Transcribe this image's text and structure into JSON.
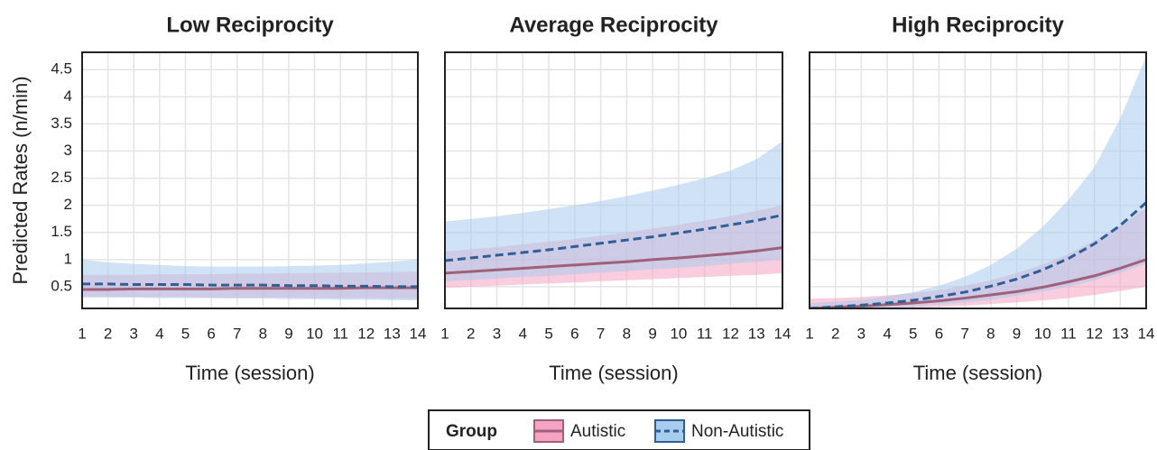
{
  "chart_data": [
    {
      "type": "line",
      "title": "Low Reciprocity",
      "ylabel": "Predicted Rates (n/min)",
      "xlabel": "Time (session)",
      "x": [
        1,
        2,
        3,
        4,
        5,
        6,
        7,
        8,
        9,
        10,
        11,
        12,
        13,
        14
      ],
      "xlim": [
        1,
        14
      ],
      "xticks": [
        1,
        2,
        3,
        4,
        5,
        6,
        7,
        8,
        9,
        10,
        11,
        12,
        13,
        14
      ],
      "ylim": [
        0.1,
        4.82
      ],
      "yticks": [
        0.5,
        1.0,
        1.5,
        2.0,
        2.5,
        3.0,
        3.5,
        4.0,
        4.5
      ],
      "grid": true,
      "legend": {
        "title": "Group",
        "position": "bottom"
      },
      "series": [
        {
          "name": "Autistic",
          "color": "#a0607a",
          "fill": "#f4a3c3",
          "linestyle": "solid",
          "values": [
            0.45,
            0.45,
            0.46,
            0.46,
            0.46,
            0.46,
            0.47,
            0.47,
            0.47,
            0.47,
            0.47,
            0.48,
            0.48,
            0.48
          ],
          "lower": [
            0.32,
            0.32,
            0.31,
            0.31,
            0.31,
            0.3,
            0.3,
            0.3,
            0.3,
            0.29,
            0.29,
            0.29,
            0.28,
            0.28
          ],
          "upper": [
            0.72,
            0.72,
            0.72,
            0.73,
            0.73,
            0.73,
            0.74,
            0.74,
            0.75,
            0.75,
            0.76,
            0.76,
            0.77,
            0.78
          ]
        },
        {
          "name": "Non-Autistic",
          "color": "#2e5f95",
          "fill": "#a9cbec",
          "linestyle": "dashed",
          "values": [
            0.55,
            0.55,
            0.54,
            0.54,
            0.54,
            0.53,
            0.53,
            0.53,
            0.52,
            0.52,
            0.51,
            0.51,
            0.5,
            0.5
          ],
          "lower": [
            0.3,
            0.3,
            0.3,
            0.29,
            0.29,
            0.29,
            0.28,
            0.28,
            0.27,
            0.27,
            0.26,
            0.26,
            0.25,
            0.25
          ],
          "upper": [
            1.0,
            0.95,
            0.92,
            0.9,
            0.88,
            0.87,
            0.87,
            0.87,
            0.88,
            0.89,
            0.9,
            0.93,
            0.96,
            1.0
          ]
        }
      ]
    },
    {
      "type": "line",
      "title": "Average Reciprocity",
      "xlabel": "Time (session)",
      "sharey": true,
      "x": [
        1,
        2,
        3,
        4,
        5,
        6,
        7,
        8,
        9,
        10,
        11,
        12,
        13,
        14
      ],
      "xlim": [
        1,
        14
      ],
      "xticks": [
        1,
        2,
        3,
        4,
        5,
        6,
        7,
        8,
        9,
        10,
        11,
        12,
        13,
        14
      ],
      "grid": true,
      "series": [
        {
          "name": "Autistic",
          "color": "#a0607a",
          "fill": "#f4a3c3",
          "linestyle": "solid",
          "values": [
            0.75,
            0.78,
            0.81,
            0.84,
            0.87,
            0.9,
            0.93,
            0.96,
            1.0,
            1.03,
            1.07,
            1.11,
            1.16,
            1.22
          ],
          "lower": [
            0.48,
            0.5,
            0.52,
            0.54,
            0.56,
            0.58,
            0.6,
            0.62,
            0.64,
            0.66,
            0.68,
            0.7,
            0.72,
            0.75
          ],
          "upper": [
            1.15,
            1.19,
            1.23,
            1.28,
            1.33,
            1.38,
            1.44,
            1.5,
            1.57,
            1.64,
            1.72,
            1.8,
            1.9,
            2.0
          ]
        },
        {
          "name": "Non-Autistic",
          "color": "#2e5f95",
          "fill": "#a9cbec",
          "linestyle": "dashed",
          "values": [
            0.98,
            1.03,
            1.08,
            1.13,
            1.18,
            1.24,
            1.3,
            1.36,
            1.42,
            1.49,
            1.56,
            1.64,
            1.72,
            1.82
          ],
          "lower": [
            0.6,
            0.62,
            0.65,
            0.68,
            0.7,
            0.73,
            0.76,
            0.79,
            0.82,
            0.85,
            0.88,
            0.92,
            0.96,
            1.0
          ],
          "upper": [
            1.7,
            1.75,
            1.8,
            1.86,
            1.93,
            2.0,
            2.08,
            2.17,
            2.27,
            2.38,
            2.5,
            2.64,
            2.85,
            3.18
          ]
        }
      ]
    },
    {
      "type": "line",
      "title": "High Reciprocity",
      "xlabel": "Time (session)",
      "sharey": true,
      "x": [
        1,
        2,
        3,
        4,
        5,
        6,
        7,
        8,
        9,
        10,
        11,
        12,
        13,
        14
      ],
      "xlim": [
        1,
        14
      ],
      "xticks": [
        1,
        2,
        3,
        4,
        5,
        6,
        7,
        8,
        9,
        10,
        11,
        12,
        13,
        14
      ],
      "grid": true,
      "series": [
        {
          "name": "Autistic",
          "color": "#a0607a",
          "fill": "#f4a3c3",
          "linestyle": "solid",
          "values": [
            0.1,
            0.12,
            0.14,
            0.17,
            0.2,
            0.24,
            0.29,
            0.35,
            0.41,
            0.49,
            0.59,
            0.7,
            0.84,
            1.0
          ],
          "lower": [
            0.06,
            0.07,
            0.08,
            0.09,
            0.11,
            0.13,
            0.15,
            0.18,
            0.21,
            0.25,
            0.29,
            0.35,
            0.42,
            0.5
          ],
          "upper": [
            0.28,
            0.29,
            0.31,
            0.34,
            0.38,
            0.44,
            0.52,
            0.62,
            0.75,
            0.91,
            1.1,
            1.35,
            1.62,
            1.95
          ]
        },
        {
          "name": "Non-Autistic",
          "color": "#2e5f95",
          "fill": "#a9cbec",
          "linestyle": "dashed",
          "values": [
            0.1,
            0.13,
            0.16,
            0.2,
            0.25,
            0.32,
            0.4,
            0.51,
            0.64,
            0.81,
            1.02,
            1.29,
            1.63,
            2.05
          ],
          "lower": [
            0.06,
            0.07,
            0.09,
            0.11,
            0.14,
            0.17,
            0.21,
            0.26,
            0.33,
            0.41,
            0.5,
            0.62,
            0.76,
            0.92
          ],
          "upper": [
            0.2,
            0.22,
            0.26,
            0.32,
            0.4,
            0.52,
            0.68,
            0.9,
            1.2,
            1.6,
            2.1,
            2.7,
            3.6,
            4.75
          ]
        }
      ]
    }
  ]
}
